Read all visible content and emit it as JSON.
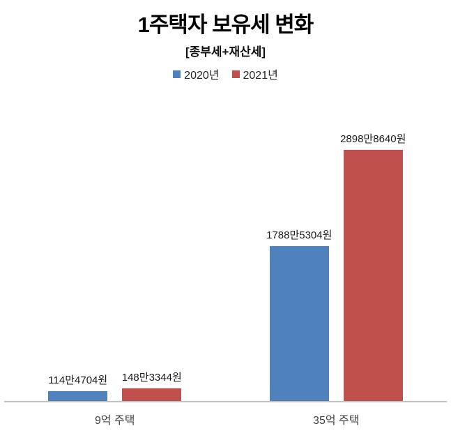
{
  "chart_data": {
    "type": "bar",
    "title": "1주택자 보유세 변화",
    "subtitle": "[종부세+재산세]",
    "unit": "원",
    "categories": [
      "9억 주택",
      "35억 주택"
    ],
    "series": [
      {
        "name": "2020년",
        "color": "#4F81BD",
        "values": [
          1144704,
          17885304
        ],
        "labels": [
          "114만4704원",
          "1788만5304원"
        ]
      },
      {
        "name": "2021년",
        "color": "#C0504D",
        "values": [
          1483344,
          28988640
        ],
        "labels": [
          "148만3344원",
          "2898만8640원"
        ]
      }
    ],
    "legend_position": "top",
    "grid": false,
    "value_axis_visible": false,
    "ylim": [
      0,
      28988640
    ],
    "axis_line_color": "#C0C0C0"
  },
  "colors": {
    "bar_value_label": "#1a1a1a",
    "category_label": "#404040",
    "axis_line": "#C0C0C0"
  }
}
